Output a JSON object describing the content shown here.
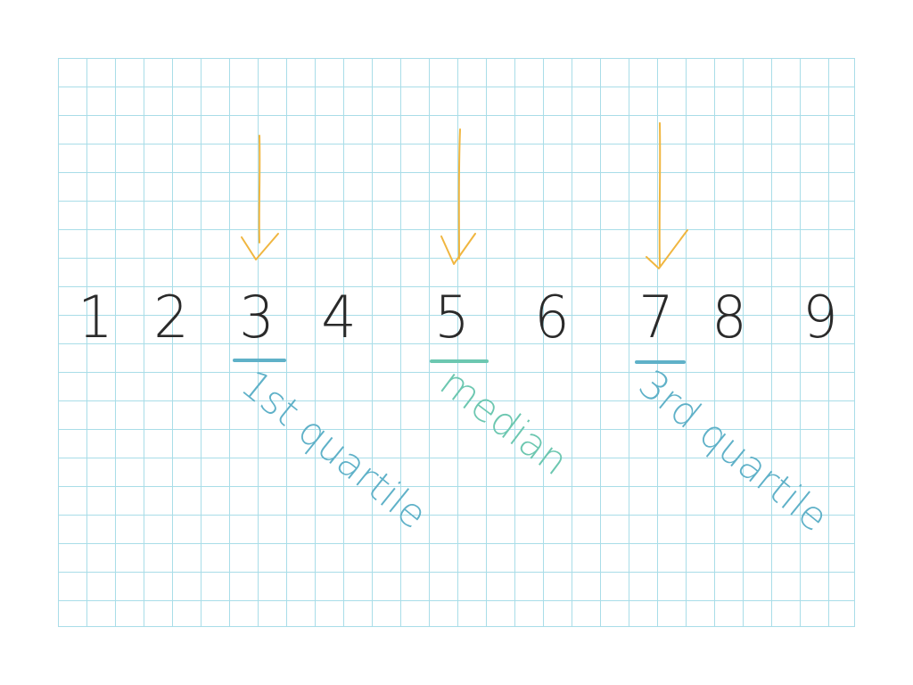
{
  "colors": {
    "grid_line": "#a9dde8",
    "ink": "#2a2a2a",
    "arrow": "#f0b640",
    "quartile_label": "#5fb1c8",
    "median_label": "#6cc7b0"
  },
  "number_line": [
    "1",
    "2",
    "3",
    "4",
    "5",
    "6",
    "7",
    "8",
    "9"
  ],
  "annotations": {
    "q1_label": "1st quartile",
    "median_label": "median",
    "q3_label": "3rd quartile"
  },
  "arrow_targets": [
    "3",
    "5",
    "7"
  ]
}
